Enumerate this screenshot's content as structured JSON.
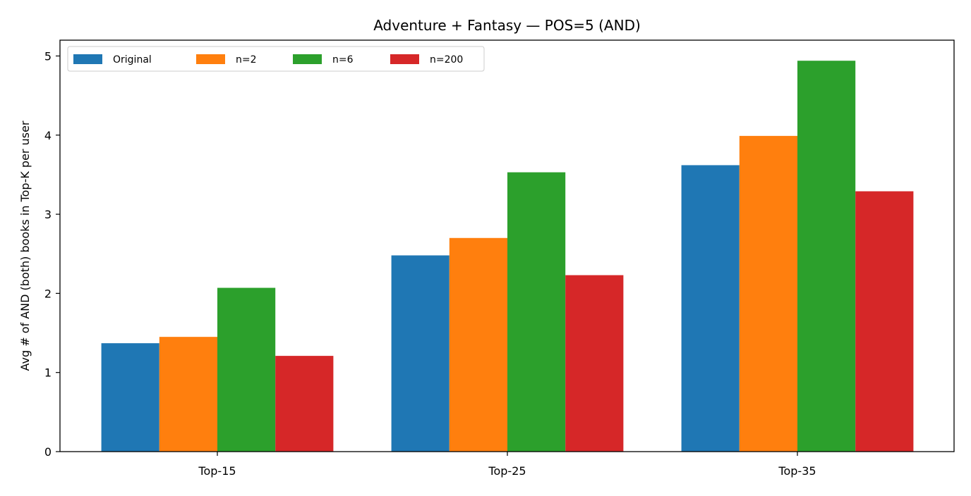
{
  "chart_data": {
    "type": "bar",
    "title": "Adventure + Fantasy — POS=5 (AND)",
    "xlabel": "",
    "ylabel": "Avg # of AND (both) books in Top-K per user",
    "categories": [
      "Top-15",
      "Top-25",
      "Top-35"
    ],
    "series": [
      {
        "name": "Original",
        "color": "#1f77b4",
        "values": [
          1.37,
          2.48,
          3.62
        ]
      },
      {
        "name": "n=2",
        "color": "#ff7f0e",
        "values": [
          1.45,
          2.7,
          3.99
        ]
      },
      {
        "name": "n=6",
        "color": "#2ca02c",
        "values": [
          2.07,
          3.53,
          4.94
        ]
      },
      {
        "name": "n=200",
        "color": "#d62728",
        "values": [
          1.21,
          2.23,
          3.29
        ]
      }
    ],
    "ylim": [
      0,
      5.2
    ],
    "yticks": [
      "0",
      "1",
      "2",
      "3",
      "4",
      "5"
    ],
    "grid": false,
    "legend": {
      "placement": "top-left",
      "columns": 4
    }
  }
}
